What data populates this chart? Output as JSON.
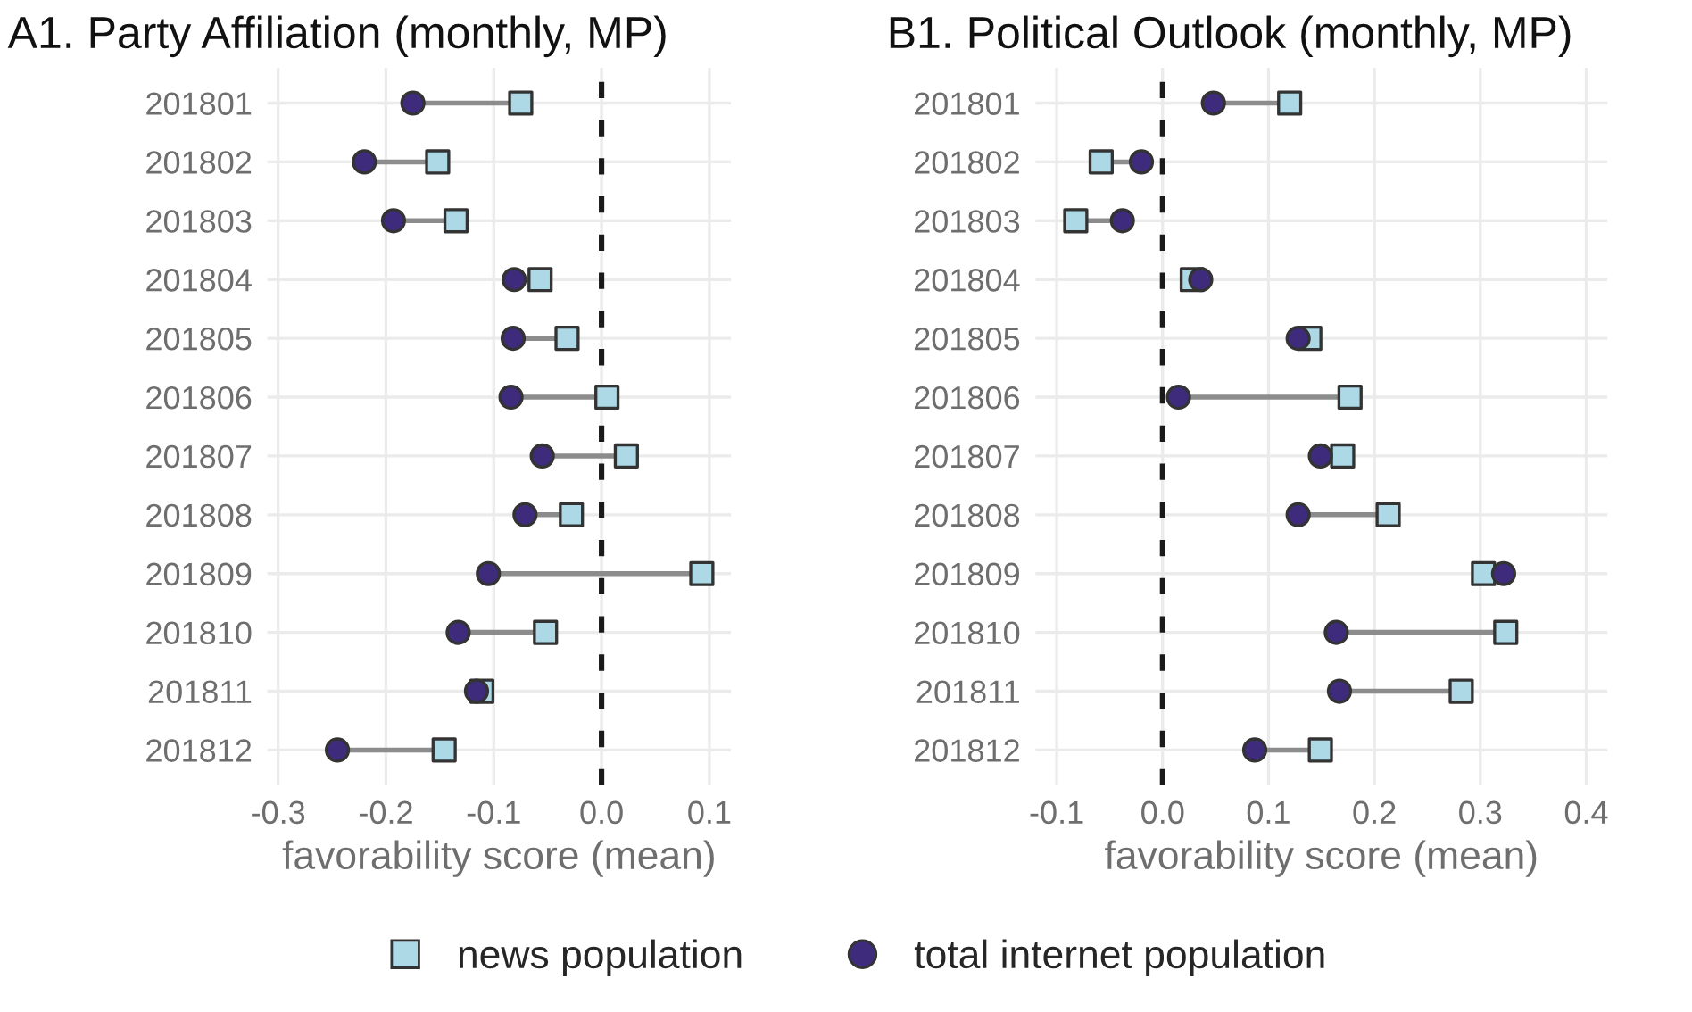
{
  "chart_data": [
    {
      "type": "scatter",
      "orientation": "horizontal",
      "title": "A1. Party Affiliation (monthly, MP)",
      "xlabel": "favorability score (mean)",
      "categories": [
        "201801",
        "201802",
        "201803",
        "201804",
        "201805",
        "201806",
        "201807",
        "201808",
        "201809",
        "201810",
        "201811",
        "201812"
      ],
      "series": [
        {
          "name": "news population",
          "color": "#add8e6",
          "marker": "square",
          "values": [
            -0.075,
            -0.152,
            -0.135,
            -0.057,
            -0.032,
            0.005,
            0.023,
            -0.028,
            0.093,
            -0.052,
            -0.111,
            -0.146
          ]
        },
        {
          "name": "total internet population",
          "color": "#3f2b7c",
          "marker": "circle",
          "values": [
            -0.175,
            -0.22,
            -0.193,
            -0.081,
            -0.082,
            -0.084,
            -0.055,
            -0.071,
            -0.105,
            -0.133,
            -0.116,
            -0.245
          ]
        }
      ],
      "xlim": [
        -0.31,
        0.12
      ],
      "xticks": [
        {
          "value": -0.3,
          "label": "-0.3"
        },
        {
          "value": -0.2,
          "label": "-0.2"
        },
        {
          "value": -0.1,
          "label": "-0.1"
        },
        {
          "value": 0.0,
          "label": "0.0"
        },
        {
          "value": 0.1,
          "label": "0.1"
        }
      ],
      "ref_lines": [
        {
          "axis": "x",
          "value": 0,
          "color": "#1a1a1a",
          "line_style": "dashed"
        }
      ],
      "grid": true,
      "legend": "bottom"
    },
    {
      "type": "scatter",
      "orientation": "horizontal",
      "title": "B1. Political Outlook (monthly, MP)",
      "xlabel": "favorability score (mean)",
      "categories": [
        "201801",
        "201802",
        "201803",
        "201804",
        "201805",
        "201806",
        "201807",
        "201808",
        "201809",
        "201810",
        "201811",
        "201812"
      ],
      "series": [
        {
          "color": "#add8e6",
          "marker": "square",
          "values": [
            0.12,
            -0.058,
            -0.082,
            0.028,
            0.139,
            0.177,
            0.17,
            0.213,
            0.303,
            0.324,
            0.282,
            0.149
          ]
        },
        {
          "color": "#3f2b7c",
          "marker": "circle",
          "values": [
            0.048,
            -0.02,
            -0.038,
            0.036,
            0.128,
            0.015,
            0.149,
            0.128,
            0.322,
            0.164,
            0.167,
            0.087
          ]
        }
      ],
      "xlim": [
        -0.12,
        0.42
      ],
      "xticks": [
        {
          "value": -0.1,
          "label": "-0.1"
        },
        {
          "value": 0.0,
          "label": "0.0"
        },
        {
          "value": 0.1,
          "label": "0.1"
        },
        {
          "value": 0.2,
          "label": "0.2"
        },
        {
          "value": 0.3,
          "label": "0.3"
        },
        {
          "value": 0.4,
          "label": "0.4"
        }
      ],
      "ref_lines": [
        {
          "axis": "x",
          "value": 0,
          "color": "#1a1a1a",
          "line_style": "dashed"
        }
      ],
      "grid": true
    }
  ]
}
